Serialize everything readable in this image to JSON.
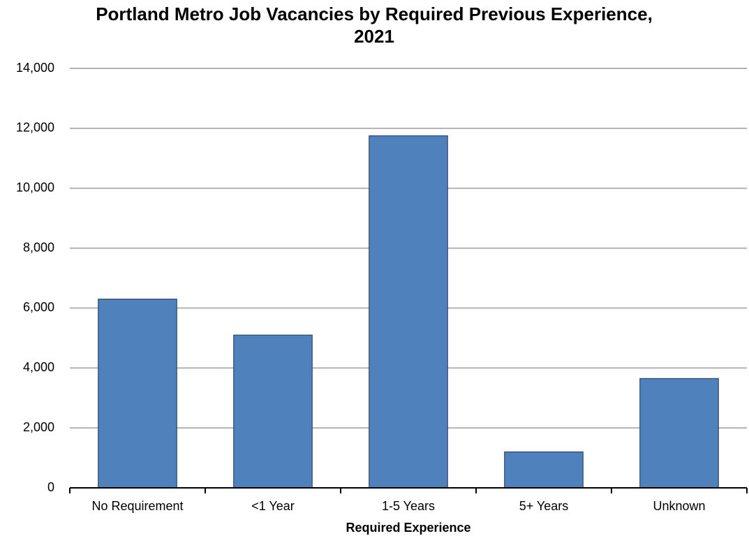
{
  "chart_data": {
    "type": "bar",
    "title": "Portland Metro Job Vacancies by Required Previous Experience, 2021",
    "x_label": "Required Experience",
    "categories": [
      "No Requirement",
      "<1 Year",
      "1-5 Years",
      "5+ Years",
      "Unknown"
    ],
    "values": [
      6300,
      5100,
      11750,
      1200,
      3650
    ],
    "color": "#4f81bd",
    "ylim": [
      0,
      14000
    ],
    "yticks": [
      0,
      {
        "value": 2000,
        "label": "2,000"
      },
      {
        "value": 4000,
        "label": "4,000"
      },
      {
        "value": 6000,
        "label": "6,000"
      },
      {
        "value": 8000,
        "label": "8,000"
      },
      {
        "value": 10000,
        "label": "10,000"
      },
      {
        "value": 12000,
        "label": "12,000"
      },
      {
        "value": 14000,
        "label": "14,000"
      }
    ],
    "grid": true
  }
}
